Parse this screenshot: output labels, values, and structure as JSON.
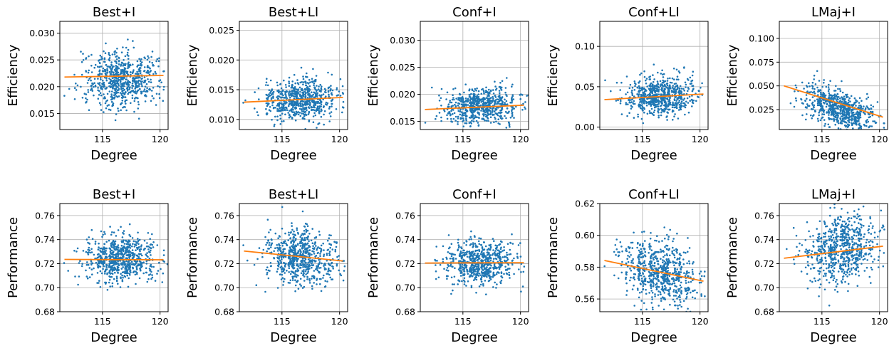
{
  "chart_data": [
    {
      "type": "scatter",
      "title": "Best+I",
      "xlabel": "Degree",
      "ylabel": "Efficiency",
      "xlim": [
        111.3,
        120.7
      ],
      "xticks": [
        "115",
        "120"
      ],
      "ylim": [
        0.012,
        0.0322
      ],
      "yticks": [
        "0.015",
        "0.020",
        "0.025",
        "0.030"
      ],
      "grid": true,
      "points": {
        "count": 700,
        "x_center": 116.6,
        "x_spread": 1.5,
        "y_center": 0.0215,
        "y_spread": 0.0026
      },
      "trend": {
        "x": [
          111.7,
          120.3
        ],
        "y": [
          0.0218,
          0.0221
        ]
      },
      "colors": {
        "points": "#1f77b4",
        "trend": "#ff7f0e"
      }
    },
    {
      "type": "scatter",
      "title": "Best+LI",
      "xlabel": "Degree",
      "ylabel": "Efficiency",
      "xlim": [
        111.3,
        120.7
      ],
      "xticks": [
        "115",
        "120"
      ],
      "ylim": [
        0.0083,
        0.0265
      ],
      "yticks": [
        "0.010",
        "0.015",
        "0.020",
        "0.025"
      ],
      "grid": true,
      "points": {
        "count": 700,
        "x_center": 116.6,
        "x_spread": 1.5,
        "y_center": 0.0132,
        "y_spread": 0.0017
      },
      "trend": {
        "x": [
          111.7,
          120.3
        ],
        "y": [
          0.0129,
          0.0137
        ]
      },
      "colors": {
        "points": "#1f77b4",
        "trend": "#ff7f0e"
      }
    },
    {
      "type": "scatter",
      "title": "Conf+I",
      "xlabel": "Degree",
      "ylabel": "Efficiency",
      "xlim": [
        111.3,
        120.7
      ],
      "xticks": [
        "115",
        "120"
      ],
      "ylim": [
        0.0135,
        0.0335
      ],
      "yticks": [
        "0.015",
        "0.020",
        "0.025",
        "0.030"
      ],
      "grid": true,
      "points": {
        "count": 700,
        "x_center": 116.6,
        "x_spread": 1.5,
        "y_center": 0.0177,
        "y_spread": 0.0017
      },
      "trend": {
        "x": [
          111.7,
          120.3
        ],
        "y": [
          0.0172,
          0.018
        ]
      },
      "colors": {
        "points": "#1f77b4",
        "trend": "#ff7f0e"
      }
    },
    {
      "type": "scatter",
      "title": "Conf+LI",
      "xlabel": "Degree",
      "ylabel": "Efficiency",
      "xlim": [
        111.3,
        120.7
      ],
      "xticks": [
        "115",
        "120"
      ],
      "ylim": [
        -0.003,
        0.131
      ],
      "yticks": [
        "0.00",
        "0.05",
        "0.10"
      ],
      "grid": true,
      "points": {
        "count": 700,
        "x_center": 116.6,
        "x_spread": 1.5,
        "y_center": 0.038,
        "y_spread": 0.012
      },
      "trend": {
        "x": [
          111.7,
          120.3
        ],
        "y": [
          0.034,
          0.041
        ]
      },
      "colors": {
        "points": "#1f77b4",
        "trend": "#ff7f0e"
      }
    },
    {
      "type": "scatter",
      "title": "LMaj+I",
      "xlabel": "Degree",
      "ylabel": "Efficiency",
      "xlim": [
        111.3,
        120.7
      ],
      "xticks": [
        "115",
        "120"
      ],
      "ylim": [
        0.004,
        0.118
      ],
      "yticks": [
        "0.025",
        "0.050",
        "0.075",
        "0.100"
      ],
      "grid": true,
      "points": {
        "count": 700,
        "x_center": 116.6,
        "x_spread": 1.5,
        "y_center": 0.028,
        "y_spread": 0.01
      },
      "trend": {
        "x": [
          111.7,
          120.3
        ],
        "y": [
          0.05,
          0.017
        ]
      },
      "colors": {
        "points": "#1f77b4",
        "trend": "#ff7f0e"
      }
    },
    {
      "type": "scatter",
      "title": "Best+I",
      "xlabel": "Degree",
      "ylabel": "Performance",
      "xlim": [
        111.3,
        120.7
      ],
      "xticks": [
        "115",
        "120"
      ],
      "ylim": [
        0.68,
        0.77
      ],
      "yticks": [
        "0.68",
        "0.70",
        "0.72",
        "0.74",
        "0.76"
      ],
      "grid": true,
      "points": {
        "count": 700,
        "x_center": 116.6,
        "x_spread": 1.5,
        "y_center": 0.724,
        "y_spread": 0.01
      },
      "trend": {
        "x": [
          111.7,
          120.3
        ],
        "y": [
          0.7235,
          0.7232
        ]
      },
      "colors": {
        "points": "#1f77b4",
        "trend": "#ff7f0e"
      }
    },
    {
      "type": "scatter",
      "title": "Best+LI",
      "xlabel": "Degree",
      "ylabel": "Performance",
      "xlim": [
        111.3,
        120.7
      ],
      "xticks": [
        "115",
        "120"
      ],
      "ylim": [
        0.68,
        0.77
      ],
      "yticks": [
        "0.68",
        "0.70",
        "0.72",
        "0.74",
        "0.76"
      ],
      "grid": true,
      "points": {
        "count": 700,
        "x_center": 116.6,
        "x_spread": 1.5,
        "y_center": 0.726,
        "y_spread": 0.011
      },
      "trend": {
        "x": [
          111.7,
          120.3
        ],
        "y": [
          0.7305,
          0.7222
        ]
      },
      "colors": {
        "points": "#1f77b4",
        "trend": "#ff7f0e"
      }
    },
    {
      "type": "scatter",
      "title": "Conf+I",
      "xlabel": "Degree",
      "ylabel": "Performance",
      "xlim": [
        111.3,
        120.7
      ],
      "xticks": [
        "115",
        "120"
      ],
      "ylim": [
        0.68,
        0.77
      ],
      "yticks": [
        "0.68",
        "0.70",
        "0.72",
        "0.74",
        "0.76"
      ],
      "grid": true,
      "points": {
        "count": 700,
        "x_center": 116.6,
        "x_spread": 1.5,
        "y_center": 0.721,
        "y_spread": 0.009
      },
      "trend": {
        "x": [
          111.7,
          120.3
        ],
        "y": [
          0.7205,
          0.7208
        ]
      },
      "colors": {
        "points": "#1f77b4",
        "trend": "#ff7f0e"
      }
    },
    {
      "type": "scatter",
      "title": "Conf+LI",
      "xlabel": "Degree",
      "ylabel": "Performance",
      "xlim": [
        111.3,
        120.7
      ],
      "xticks": [
        "115",
        "120"
      ],
      "ylim": [
        0.552,
        0.62
      ],
      "yticks": [
        "0.56",
        "0.58",
        "0.60",
        "0.62"
      ],
      "grid": true,
      "points": {
        "count": 700,
        "x_center": 116.6,
        "x_spread": 1.5,
        "y_center": 0.577,
        "y_spread": 0.01
      },
      "trend": {
        "x": [
          111.7,
          120.3
        ],
        "y": [
          0.5842,
          0.5712
        ]
      },
      "colors": {
        "points": "#1f77b4",
        "trend": "#ff7f0e"
      }
    },
    {
      "type": "scatter",
      "title": "LMaj+I",
      "xlabel": "Degree",
      "ylabel": "Performance",
      "xlim": [
        111.3,
        120.7
      ],
      "xticks": [
        "115",
        "120"
      ],
      "ylim": [
        0.68,
        0.77
      ],
      "yticks": [
        "0.68",
        "0.70",
        "0.72",
        "0.74",
        "0.76"
      ],
      "grid": true,
      "points": {
        "count": 700,
        "x_center": 116.6,
        "x_spread": 1.5,
        "y_center": 0.731,
        "y_spread": 0.014
      },
      "trend": {
        "x": [
          111.7,
          120.3
        ],
        "y": [
          0.7245,
          0.7345
        ]
      },
      "colors": {
        "points": "#1f77b4",
        "trend": "#ff7f0e"
      }
    }
  ]
}
